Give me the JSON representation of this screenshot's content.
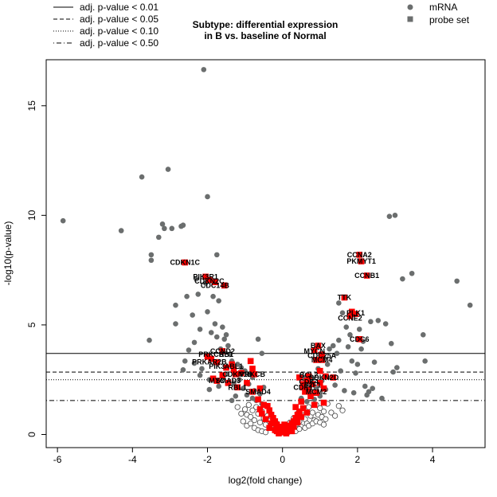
{
  "chart_data": {
    "type": "scatter",
    "title": [
      "Subtype: differential expression",
      "in B vs. baseline of Normal"
    ],
    "xlabel": "log2(fold change)",
    "ylabel": "-log10(p-value)",
    "xlim": [
      -6.3,
      5.4
    ],
    "ylim": [
      -0.6,
      17.1
    ],
    "xticks": [
      -6,
      -4,
      -2,
      0,
      2,
      4
    ],
    "yticks": [
      0,
      5,
      10,
      15
    ],
    "thresholds": [
      {
        "label": "adj. p-value < 0.01",
        "y": 3.7,
        "style": "solid"
      },
      {
        "label": "adj. p-value < 0.05",
        "y": 2.85,
        "style": "dashed"
      },
      {
        "label": "adj. p-value < 0.10",
        "y": 2.5,
        "style": "dotted"
      },
      {
        "label": "adj. p-value < 0.50",
        "y": 1.55,
        "style": "dotdash"
      }
    ],
    "legend_right": [
      {
        "label": "mRNA",
        "shape": "circle",
        "color": "#6b6e6e"
      },
      {
        "label": "probe set",
        "shape": "square",
        "color": "#6b6e6e"
      }
    ],
    "colors": {
      "mrna": "#6b6e6e",
      "probe": "#ff0000",
      "nonsig": "#ffffff"
    },
    "mrna_points": [
      [
        -5.85,
        9.75
      ],
      [
        -4.3,
        9.3
      ],
      [
        -3.75,
        11.75
      ],
      [
        -3.55,
        4.3
      ],
      [
        -3.5,
        8.2
      ],
      [
        -3.5,
        7.95
      ],
      [
        -3.3,
        9.0
      ],
      [
        -3.2,
        9.6
      ],
      [
        -3.15,
        9.4
      ],
      [
        -3.05,
        12.1
      ],
      [
        -2.95,
        9.4
      ],
      [
        -2.85,
        5.9
      ],
      [
        -2.85,
        5.05
      ],
      [
        -2.7,
        9.5
      ],
      [
        -2.65,
        9.55
      ],
      [
        -2.55,
        6.3
      ],
      [
        -2.5,
        3.85
      ],
      [
        -2.4,
        5.45
      ],
      [
        -2.35,
        4.2
      ],
      [
        -2.3,
        7.1
      ],
      [
        -2.25,
        6.4
      ],
      [
        -2.2,
        4.8
      ],
      [
        -2.1,
        16.65
      ],
      [
        -2.05,
        6.9
      ],
      [
        -2.0,
        10.85
      ],
      [
        -2.0,
        5.6
      ],
      [
        -1.95,
        7.05
      ],
      [
        -1.9,
        4.65
      ],
      [
        -1.85,
        6.3
      ],
      [
        -1.8,
        5.05
      ],
      [
        -1.75,
        4.45
      ],
      [
        -1.75,
        8.2
      ],
      [
        -1.7,
        6.1
      ],
      [
        -1.65,
        3.9
      ],
      [
        -1.6,
        4.9
      ],
      [
        -1.55,
        4.35
      ],
      [
        -1.5,
        4.55
      ],
      [
        -1.45,
        4.05
      ],
      [
        -1.4,
        3.65
      ],
      [
        -1.35,
        3.35
      ],
      [
        -1.3,
        3.1
      ],
      [
        -1.2,
        3.2
      ],
      [
        -1.1,
        3.05
      ],
      [
        -1.0,
        2.9
      ],
      [
        -0.9,
        2.75
      ],
      [
        -0.8,
        2.6
      ],
      [
        -0.65,
        4.35
      ],
      [
        -0.55,
        3.7
      ],
      [
        -2.35,
        3.25
      ],
      [
        -2.2,
        2.7
      ],
      [
        -2.15,
        3.0
      ],
      [
        -1.95,
        2.5
      ],
      [
        -1.7,
        2.2
      ],
      [
        -1.5,
        2.75
      ],
      [
        -1.3,
        2.35
      ],
      [
        -1.25,
        1.75
      ],
      [
        -1.15,
        2.5
      ],
      [
        -1.05,
        2.1
      ],
      [
        -0.95,
        1.8
      ],
      [
        -0.9,
        2.3
      ],
      [
        -0.8,
        1.65
      ],
      [
        -0.75,
        2.0
      ],
      [
        -0.7,
        1.55
      ],
      [
        -0.6,
        1.85
      ],
      [
        -0.55,
        1.4
      ],
      [
        -0.5,
        2.15
      ],
      [
        -2.6,
        3.35
      ],
      [
        -2.65,
        2.95
      ],
      [
        -1.95,
        2.05
      ],
      [
        -1.35,
        1.55
      ],
      [
        0.5,
        1.65
      ],
      [
        0.6,
        2.0
      ],
      [
        0.65,
        1.5
      ],
      [
        0.7,
        2.3
      ],
      [
        0.75,
        1.8
      ],
      [
        0.8,
        2.55
      ],
      [
        0.85,
        1.6
      ],
      [
        0.9,
        2.1
      ],
      [
        0.95,
        3.0
      ],
      [
        1.0,
        1.75
      ],
      [
        1.05,
        2.45
      ],
      [
        1.1,
        3.5
      ],
      [
        1.15,
        2.05
      ],
      [
        1.2,
        3.2
      ],
      [
        1.25,
        3.9
      ],
      [
        1.3,
        2.6
      ],
      [
        1.35,
        4.05
      ],
      [
        1.4,
        2.25
      ],
      [
        1.45,
        3.7
      ],
      [
        1.5,
        4.3
      ],
      [
        1.55,
        2.9
      ],
      [
        1.6,
        5.55
      ],
      [
        1.65,
        2.0
      ],
      [
        1.7,
        4.9
      ],
      [
        1.8,
        4.55
      ],
      [
        1.85,
        3.35
      ],
      [
        1.9,
        1.9
      ],
      [
        1.95,
        2.8
      ],
      [
        2.05,
        4.8
      ],
      [
        2.1,
        3.9
      ],
      [
        2.2,
        2.2
      ],
      [
        2.25,
        1.8
      ],
      [
        2.3,
        1.95
      ],
      [
        2.35,
        5.15
      ],
      [
        2.45,
        3.3
      ],
      [
        2.55,
        5.2
      ],
      [
        2.65,
        1.65
      ],
      [
        2.75,
        5.05
      ],
      [
        2.85,
        9.95
      ],
      [
        2.9,
        4.15
      ],
      [
        3.0,
        10.0
      ],
      [
        3.05,
        3.05
      ],
      [
        3.2,
        7.1
      ],
      [
        3.45,
        7.35
      ],
      [
        3.75,
        4.55
      ],
      [
        3.8,
        3.35
      ],
      [
        4.65,
        7.0
      ],
      [
        5.0,
        5.9
      ],
      [
        2.15,
        4.25
      ],
      [
        1.5,
        6.0
      ],
      [
        2.0,
        3.2
      ],
      [
        2.95,
        2.85
      ],
      [
        1.75,
        4.0
      ],
      [
        0.55,
        2.6
      ],
      [
        2.4,
        2.1
      ]
    ],
    "white_points": [
      [
        -1.0,
        1.15
      ],
      [
        -0.95,
        0.9
      ],
      [
        -0.9,
        1.35
      ],
      [
        -0.85,
        0.8
      ],
      [
        -0.8,
        1.1
      ],
      [
        -0.75,
        0.65
      ],
      [
        -0.7,
        1.25
      ],
      [
        -0.65,
        0.95
      ],
      [
        -0.6,
        0.55
      ],
      [
        -0.55,
        1.05
      ],
      [
        -0.5,
        0.75
      ],
      [
        -0.45,
        0.45
      ],
      [
        -0.4,
        0.85
      ],
      [
        -0.35,
        0.6
      ],
      [
        -0.3,
        0.35
      ],
      [
        -0.25,
        0.7
      ],
      [
        -0.2,
        0.25
      ],
      [
        -0.15,
        0.5
      ],
      [
        -0.1,
        0.15
      ],
      [
        -0.05,
        0.3
      ],
      [
        0.05,
        0.2
      ],
      [
        0.1,
        0.4
      ],
      [
        0.15,
        0.1
      ],
      [
        0.2,
        0.55
      ],
      [
        0.25,
        0.3
      ],
      [
        0.3,
        0.75
      ],
      [
        0.35,
        0.45
      ],
      [
        0.4,
        0.95
      ],
      [
        0.45,
        0.6
      ],
      [
        0.5,
        0.35
      ],
      [
        0.55,
        1.1
      ],
      [
        0.6,
        0.7
      ],
      [
        0.65,
        0.5
      ],
      [
        0.7,
        1.25
      ],
      [
        0.75,
        0.85
      ],
      [
        0.8,
        1.0
      ],
      [
        0.85,
        0.65
      ],
      [
        0.9,
        1.35
      ],
      [
        0.95,
        0.9
      ],
      [
        1.0,
        1.2
      ],
      [
        1.05,
        0.8
      ],
      [
        1.1,
        1.05
      ],
      [
        1.15,
        0.7
      ],
      [
        1.2,
        1.4
      ],
      [
        1.3,
        1.0
      ],
      [
        1.4,
        0.85
      ],
      [
        1.5,
        1.3
      ],
      [
        1.6,
        1.1
      ],
      [
        -1.1,
        0.95
      ],
      [
        -1.2,
        1.25
      ],
      [
        -1.05,
        0.6
      ],
      [
        -0.95,
        0.4
      ],
      [
        -0.85,
        0.5
      ],
      [
        -0.75,
        0.3
      ],
      [
        -0.65,
        0.2
      ],
      [
        -0.55,
        0.15
      ],
      [
        -0.45,
        0.1
      ],
      [
        0.35,
        0.15
      ],
      [
        0.45,
        0.25
      ],
      [
        0.6,
        0.3
      ],
      [
        0.7,
        0.4
      ],
      [
        0.8,
        0.5
      ],
      [
        0.9,
        0.6
      ],
      [
        1.0,
        0.55
      ],
      [
        1.1,
        0.45
      ]
    ],
    "probe_points": [
      [
        -2.6,
        7.85
      ],
      [
        -2.05,
        7.2
      ],
      [
        -1.95,
        7.05
      ],
      [
        -1.8,
        6.95
      ],
      [
        -1.55,
        6.8
      ],
      [
        2.05,
        8.2
      ],
      [
        2.1,
        7.9
      ],
      [
        2.25,
        7.25
      ],
      [
        1.65,
        6.25
      ],
      [
        1.85,
        5.6
      ],
      [
        1.95,
        5.5
      ],
      [
        1.8,
        5.4
      ],
      [
        2.05,
        4.35
      ],
      [
        0.95,
        4.05
      ],
      [
        0.85,
        3.85
      ],
      [
        1.05,
        3.65
      ],
      [
        1.05,
        3.4
      ],
      [
        0.9,
        3.4
      ],
      [
        -1.6,
        3.8
      ],
      [
        -1.9,
        3.45
      ],
      [
        -2.0,
        3.55
      ],
      [
        -1.75,
        3.3
      ],
      [
        -1.35,
        3.2
      ],
      [
        -1.5,
        3.05
      ],
      [
        -1.3,
        2.95
      ],
      [
        -0.85,
        3.35
      ],
      [
        -0.8,
        3.0
      ],
      [
        -1.1,
        2.8
      ],
      [
        -1.25,
        2.75
      ],
      [
        -0.75,
        2.75
      ],
      [
        -1.6,
        2.7
      ],
      [
        -1.85,
        2.55
      ],
      [
        -1.75,
        2.45
      ],
      [
        -1.45,
        2.35
      ],
      [
        -0.95,
        2.35
      ],
      [
        -1.2,
        2.15
      ],
      [
        -0.6,
        2.1
      ],
      [
        -0.8,
        1.95
      ],
      [
        -0.65,
        1.6
      ],
      [
        -0.5,
        1.35
      ],
      [
        1.0,
        2.9
      ],
      [
        1.15,
        2.65
      ],
      [
        0.7,
        2.65
      ],
      [
        1.35,
        2.6
      ],
      [
        0.45,
        2.6
      ],
      [
        0.65,
        2.45
      ],
      [
        1.0,
        2.35
      ],
      [
        0.55,
        2.3
      ],
      [
        0.8,
        2.3
      ],
      [
        0.55,
        2.15
      ],
      [
        0.7,
        2.05
      ],
      [
        1.1,
        2.1
      ],
      [
        0.6,
        1.95
      ],
      [
        0.9,
        1.9
      ],
      [
        0.75,
        1.75
      ],
      [
        0.5,
        1.5
      ],
      [
        1.1,
        1.45
      ],
      [
        0.85,
        1.35
      ],
      [
        -0.4,
        1.3
      ],
      [
        -0.35,
        1.1
      ],
      [
        -0.3,
        0.9
      ],
      [
        -0.25,
        0.75
      ],
      [
        -0.2,
        0.6
      ],
      [
        -0.15,
        0.45
      ],
      [
        -0.1,
        0.35
      ],
      [
        -0.05,
        0.25
      ],
      [
        0.0,
        0.15
      ],
      [
        0.05,
        0.1
      ],
      [
        0.1,
        0.2
      ],
      [
        0.15,
        0.3
      ],
      [
        0.2,
        0.4
      ],
      [
        0.25,
        0.5
      ],
      [
        0.3,
        0.6
      ],
      [
        0.35,
        0.75
      ],
      [
        0.4,
        0.9
      ],
      [
        0.45,
        1.05
      ],
      [
        0.55,
        1.2
      ],
      [
        0.3,
        0.35
      ],
      [
        0.2,
        0.25
      ],
      [
        -0.3,
        0.5
      ],
      [
        -0.45,
        0.7
      ],
      [
        -0.55,
        0.95
      ],
      [
        -0.2,
        0.2
      ],
      [
        -0.1,
        0.05
      ],
      [
        0.05,
        0.45
      ],
      [
        0.65,
        1.0
      ],
      [
        0.35,
        1.25
      ],
      [
        -0.6,
        1.15
      ],
      [
        0.1,
        0.05
      ],
      [
        -0.35,
        0.3
      ],
      [
        0.25,
        0.15
      ],
      [
        -0.15,
        0.15
      ],
      [
        0.5,
        0.8
      ],
      [
        0.4,
        0.55
      ]
    ],
    "labels": [
      {
        "text": "CCNA2",
        "x": 2.05,
        "y": 8.2
      },
      {
        "text": "PKMYT1",
        "x": 2.1,
        "y": 7.9
      },
      {
        "text": "CCNB1",
        "x": 2.25,
        "y": 7.25
      },
      {
        "text": "CDKN1C",
        "x": -2.6,
        "y": 7.85
      },
      {
        "text": "PIK3R1",
        "x": -2.05,
        "y": 7.2
      },
      {
        "text": "CDKN2C",
        "x": -1.95,
        "y": 7.0
      },
      {
        "text": "CDC14B",
        "x": -1.8,
        "y": 6.8
      },
      {
        "text": "TTK",
        "x": 1.65,
        "y": 6.25
      },
      {
        "text": "PLK1",
        "x": 1.95,
        "y": 5.55
      },
      {
        "text": "CCNE2",
        "x": 1.8,
        "y": 5.3
      },
      {
        "text": "CDC6",
        "x": 2.05,
        "y": 4.35
      },
      {
        "text": "BAX",
        "x": 0.95,
        "y": 4.05
      },
      {
        "text": "MYCN",
        "x": 0.85,
        "y": 3.8
      },
      {
        "text": "CDC25A",
        "x": 1.05,
        "y": 3.6
      },
      {
        "text": "MCM4",
        "x": 1.05,
        "y": 3.4
      },
      {
        "text": "CCND2",
        "x": -1.6,
        "y": 3.8
      },
      {
        "text": "PRKCB",
        "x": -1.9,
        "y": 3.65
      },
      {
        "text": "RB1",
        "x": -1.5,
        "y": 3.65
      },
      {
        "text": "PRKAR2B",
        "x": -1.95,
        "y": 3.3
      },
      {
        "text": "PIK3",
        "x": -1.75,
        "y": 3.1
      },
      {
        "text": "ABL1",
        "x": -1.3,
        "y": 3.1
      },
      {
        "text": "CDKN1B",
        "x": -1.2,
        "y": 2.75
      },
      {
        "text": "PRKCB",
        "x": -0.8,
        "y": 2.75
      },
      {
        "text": "MYC",
        "x": -1.75,
        "y": 2.45
      },
      {
        "text": "SMAD3",
        "x": -1.45,
        "y": 2.45
      },
      {
        "text": "RBL1",
        "x": -1.2,
        "y": 2.15
      },
      {
        "text": "SMAD4",
        "x": -0.65,
        "y": 1.95
      },
      {
        "text": "BCL2",
        "x": 0.7,
        "y": 2.7
      },
      {
        "text": "CDKN2D",
        "x": 1.1,
        "y": 2.6
      },
      {
        "text": "CDK4",
        "x": 0.7,
        "y": 2.4
      },
      {
        "text": "E2F1",
        "x": 0.8,
        "y": 2.25
      },
      {
        "text": "CDK1",
        "x": 0.55,
        "y": 2.15
      },
      {
        "text": "MCM2",
        "x": 0.9,
        "y": 1.95
      }
    ]
  }
}
